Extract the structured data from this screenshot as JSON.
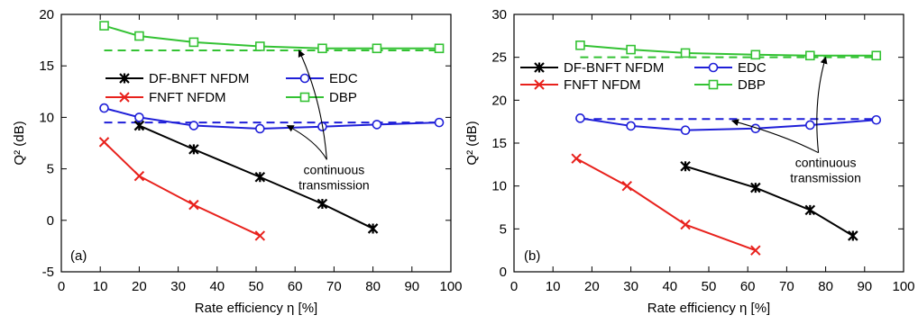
{
  "chart_data": [
    {
      "type": "line",
      "panel_label": "(a)",
      "xlabel": "Rate efficiency η [%]",
      "ylabel": "Q² (dB)",
      "xlim": [
        0,
        100
      ],
      "ylim": [
        -5,
        20
      ],
      "xticks": [
        0,
        10,
        20,
        30,
        40,
        50,
        60,
        70,
        80,
        90,
        100
      ],
      "yticks": [
        -5,
        0,
        5,
        10,
        15,
        20
      ],
      "grid": false,
      "legend_position": "upper middle, two columns",
      "series": [
        {
          "name": "DF-BNFT NFDM",
          "color": "#000000",
          "marker": "asterisk",
          "x": [
            20,
            34,
            51,
            67,
            80
          ],
          "y": [
            9.2,
            6.9,
            4.2,
            1.6,
            -0.8
          ]
        },
        {
          "name": "FNFT NFDM",
          "color": "#e8211c",
          "marker": "x",
          "x": [
            11,
            20,
            34,
            51
          ],
          "y": [
            7.6,
            4.3,
            1.5,
            -1.5
          ]
        },
        {
          "name": "EDC",
          "color": "#1f1fd8",
          "marker": "circle",
          "x": [
            11,
            20,
            34,
            51,
            67,
            81,
            97
          ],
          "y": [
            10.9,
            10.0,
            9.2,
            8.9,
            9.1,
            9.3,
            9.5
          ]
        },
        {
          "name": "DBP",
          "color": "#33c233",
          "marker": "square",
          "x": [
            11,
            20,
            34,
            51,
            67,
            81,
            97
          ],
          "y": [
            18.9,
            17.9,
            17.3,
            16.9,
            16.7,
            16.7,
            16.7
          ]
        }
      ],
      "reference_lines": [
        {
          "color": "#1f1fd8",
          "y": 9.5,
          "x_start": 11,
          "x_end": 97
        },
        {
          "color": "#33c233",
          "y": 16.5,
          "x_start": 11,
          "x_end": 97
        }
      ],
      "annotation": {
        "text_lines": [
          "continuous",
          "transmission"
        ],
        "text_x": 70,
        "text_y": 4.5,
        "arrow_targets": [
          {
            "x": 58,
            "y": 9.2
          },
          {
            "x": 61,
            "y": 16.5
          }
        ]
      }
    },
    {
      "type": "line",
      "panel_label": "(b)",
      "xlabel": "Rate efficiency η [%]",
      "ylabel": "Q² (dB)",
      "xlim": [
        0,
        100
      ],
      "ylim": [
        0,
        30
      ],
      "xticks": [
        0,
        10,
        20,
        30,
        40,
        50,
        60,
        70,
        80,
        90,
        100
      ],
      "yticks": [
        0,
        5,
        10,
        15,
        20,
        25,
        30
      ],
      "grid": false,
      "legend_position": "upper middle, two columns",
      "series": [
        {
          "name": "DF-BNFT NFDM",
          "color": "#000000",
          "marker": "asterisk",
          "x": [
            44,
            62,
            76,
            87
          ],
          "y": [
            12.3,
            9.8,
            7.2,
            4.2
          ]
        },
        {
          "name": "FNFT NFDM",
          "color": "#e8211c",
          "marker": "x",
          "x": [
            16,
            29,
            44,
            62
          ],
          "y": [
            13.2,
            10.0,
            5.5,
            2.5
          ]
        },
        {
          "name": "EDC",
          "color": "#1f1fd8",
          "marker": "circle",
          "x": [
            17,
            30,
            44,
            62,
            76,
            93
          ],
          "y": [
            17.9,
            17.0,
            16.5,
            16.7,
            17.1,
            17.7
          ]
        },
        {
          "name": "DBP",
          "color": "#33c233",
          "marker": "square",
          "x": [
            17,
            30,
            44,
            62,
            76,
            93
          ],
          "y": [
            26.4,
            25.9,
            25.5,
            25.3,
            25.2,
            25.2
          ]
        }
      ],
      "reference_lines": [
        {
          "color": "#1f1fd8",
          "y": 17.8,
          "x_start": 17,
          "x_end": 93
        },
        {
          "color": "#33c233",
          "y": 25.0,
          "x_start": 17,
          "x_end": 93
        }
      ],
      "annotation": {
        "text_lines": [
          "continuous",
          "transmission"
        ],
        "text_x": 80,
        "text_y": 12.2,
        "arrow_targets": [
          {
            "x": 56,
            "y": 17.6
          },
          {
            "x": 80,
            "y": 25.0
          }
        ]
      }
    }
  ]
}
